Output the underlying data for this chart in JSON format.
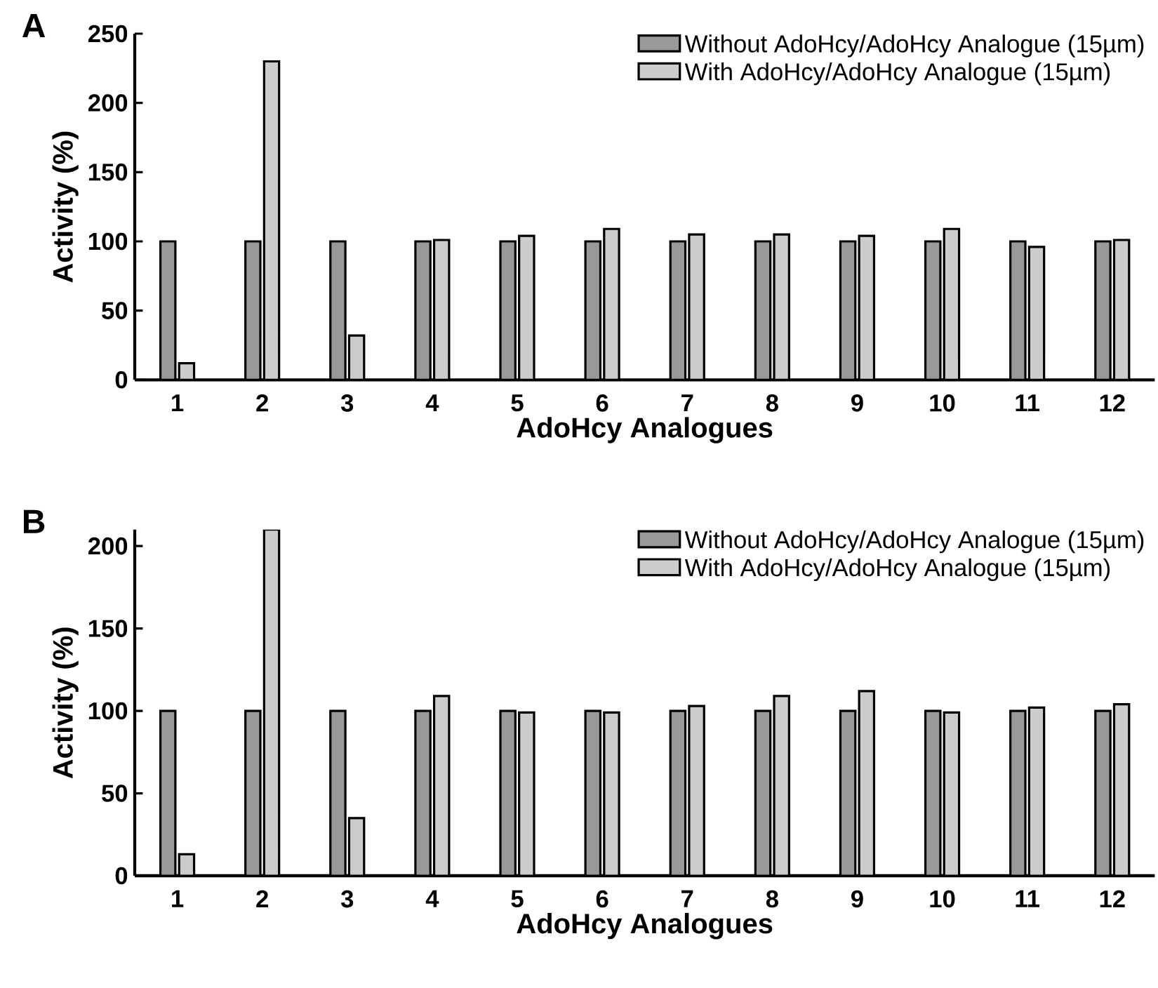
{
  "chart_data": [
    {
      "type": "bar",
      "title": "A",
      "xlabel": "AdoHcy Analogues",
      "ylabel": "Activity (%)",
      "categories": [
        "1",
        "2",
        "3",
        "4",
        "5",
        "6",
        "7",
        "8",
        "9",
        "10",
        "11",
        "12"
      ],
      "series": [
        {
          "name": "Without AdoHcy/AdoHcy Analogue (15µm)",
          "color": "#999999",
          "values": [
            100,
            100,
            100,
            100,
            100,
            100,
            100,
            100,
            100,
            100,
            100,
            100
          ]
        },
        {
          "name": "With AdoHcy/AdoHcy Analogue (15µm)",
          "color": "#cccccc",
          "values": [
            12,
            230,
            32,
            101,
            104,
            109,
            105,
            105,
            104,
            109,
            96,
            101
          ]
        }
      ],
      "ylim": [
        0,
        250
      ],
      "yticks": [
        0,
        50,
        100,
        150,
        200,
        250
      ],
      "legend": "top right"
    },
    {
      "type": "bar",
      "title": "B",
      "xlabel": "AdoHcy Analogues",
      "ylabel": "Activity (%)",
      "categories": [
        "1",
        "2",
        "3",
        "4",
        "5",
        "6",
        "7",
        "8",
        "9",
        "10",
        "11",
        "12"
      ],
      "series": [
        {
          "name": "Without AdoHcy/AdoHcy Analogue (15µm)",
          "color": "#999999",
          "values": [
            100,
            100,
            100,
            100,
            100,
            100,
            100,
            100,
            100,
            100,
            100,
            100
          ]
        },
        {
          "name": "With AdoHcy/AdoHcy Analogue (15µm)",
          "color": "#cccccc",
          "values": [
            13,
            210,
            35,
            109,
            99,
            99,
            103,
            109,
            112,
            99,
            102,
            104
          ]
        }
      ],
      "ylim": [
        0,
        210
      ],
      "yticks": [
        0,
        50,
        100,
        150,
        200
      ],
      "legend": "top right"
    }
  ]
}
